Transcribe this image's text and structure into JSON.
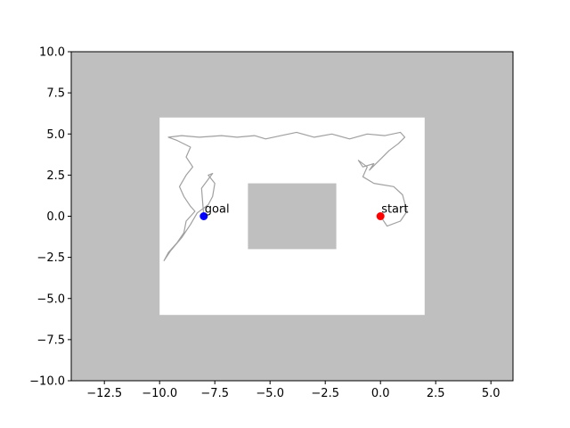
{
  "chart_data": {
    "type": "scatter",
    "title": "",
    "xlabel": "",
    "ylabel": "",
    "xlim": [
      -14,
      6
    ],
    "ylim": [
      -10,
      10
    ],
    "x_ticks": [
      -12.5,
      -10.0,
      -7.5,
      -5.0,
      -2.5,
      0.0,
      2.5,
      5.0
    ],
    "x_tick_labels": [
      "−12.5",
      "−10.0",
      "−7.5",
      "−5.0",
      "−2.5",
      "0.0",
      "2.5",
      "5.0"
    ],
    "y_ticks": [
      -10.0,
      -7.5,
      -5.0,
      -2.5,
      0.0,
      2.5,
      5.0,
      7.5,
      10.0
    ],
    "y_tick_labels": [
      "−10.0",
      "−7.5",
      "−5.0",
      "−2.5",
      "0.0",
      "2.5",
      "5.0",
      "7.5",
      "10.0"
    ],
    "grid": false,
    "colors": {
      "obstacle": "#bfbfbf",
      "free_space": "#ffffff",
      "path": "#808080",
      "goal": "#0000ff",
      "start": "#ff0000"
    },
    "obstacles": [
      {
        "name": "outer-region",
        "x": [
          -14,
          6
        ],
        "y": [
          -10,
          10
        ]
      },
      {
        "name": "inner-block",
        "x": [
          -6,
          -2
        ],
        "y": [
          -2,
          2
        ]
      }
    ],
    "free_space": {
      "x": [
        -10,
        2
      ],
      "y": [
        -6,
        6
      ]
    },
    "points": [
      {
        "name": "goal",
        "label": "goal",
        "x": -8,
        "y": 0,
        "color": "#0000ff"
      },
      {
        "name": "start",
        "label": "start",
        "x": 0,
        "y": 0,
        "color": "#ff0000"
      }
    ],
    "path_series": [
      {
        "points": [
          [
            0.0,
            0.0
          ],
          [
            0.3,
            -0.6
          ],
          [
            0.9,
            -0.3
          ],
          [
            1.2,
            0.3
          ],
          [
            1.0,
            1.3
          ],
          [
            0.6,
            1.8
          ],
          [
            -0.3,
            2.0
          ],
          [
            -0.8,
            2.4
          ],
          [
            -0.6,
            3.0
          ],
          [
            -1.0,
            3.4
          ],
          [
            -0.8,
            3.0
          ],
          [
            -0.3,
            3.2
          ],
          [
            -0.5,
            2.8
          ],
          [
            0.1,
            3.6
          ],
          [
            0.4,
            4.0
          ],
          [
            0.8,
            4.4
          ],
          [
            1.1,
            4.8
          ],
          [
            0.9,
            5.1
          ],
          [
            0.2,
            4.9
          ],
          [
            -0.6,
            5.0
          ],
          [
            -1.4,
            4.7
          ],
          [
            -2.2,
            5.0
          ],
          [
            -3.0,
            4.8
          ],
          [
            -3.8,
            5.1
          ],
          [
            -4.5,
            4.9
          ],
          [
            -5.2,
            4.7
          ],
          [
            -5.7,
            4.9
          ],
          [
            -6.5,
            4.8
          ],
          [
            -7.2,
            4.9
          ],
          [
            -8.2,
            4.8
          ],
          [
            -9.0,
            4.9
          ],
          [
            -9.6,
            4.8
          ],
          [
            -9.2,
            4.6
          ],
          [
            -8.6,
            4.2
          ],
          [
            -8.8,
            3.6
          ],
          [
            -8.5,
            3.0
          ],
          [
            -8.8,
            2.5
          ],
          [
            -9.1,
            1.8
          ],
          [
            -8.9,
            1.2
          ],
          [
            -8.6,
            0.6
          ],
          [
            -8.4,
            0.3
          ],
          [
            -8.8,
            -0.3
          ],
          [
            -8.9,
            -1.0
          ],
          [
            -9.2,
            -1.6
          ],
          [
            -9.6,
            -2.2
          ],
          [
            -9.8,
            -2.7
          ],
          [
            -9.5,
            -2.1
          ],
          [
            -9.0,
            -1.3
          ],
          [
            -8.6,
            -0.5
          ],
          [
            -8.3,
            0.2
          ],
          [
            -7.8,
            0.7
          ],
          [
            -7.6,
            1.2
          ],
          [
            -7.5,
            2.0
          ],
          [
            -7.8,
            2.5
          ],
          [
            -7.6,
            2.6
          ],
          [
            -8.1,
            1.7
          ],
          [
            -8.0,
            0.0
          ]
        ]
      }
    ]
  }
}
